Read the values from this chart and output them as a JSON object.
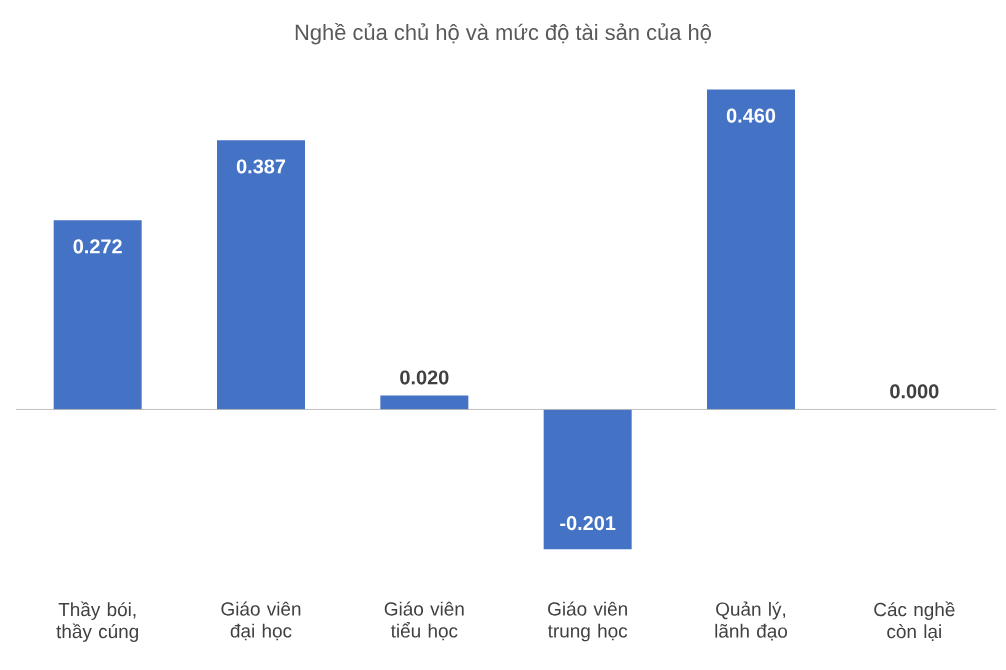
{
  "chart_data": {
    "type": "bar",
    "title": "Nghề của chủ hộ và mức độ tài sản của hộ",
    "categories": [
      "Thầy bói, thầy cúng",
      "Giáo viên đại học",
      "Giáo viên tiểu học",
      "Giáo viên trung học",
      "Quản lý, lãnh đạo",
      "Các nghề còn lại"
    ],
    "values": [
      0.272,
      0.387,
      0.02,
      -0.201,
      0.46,
      0.0
    ],
    "value_labels": [
      "0.272",
      "0.387",
      "0.020",
      "-0.201",
      "0.460",
      "0.000"
    ],
    "color": "#4472c4"
  }
}
